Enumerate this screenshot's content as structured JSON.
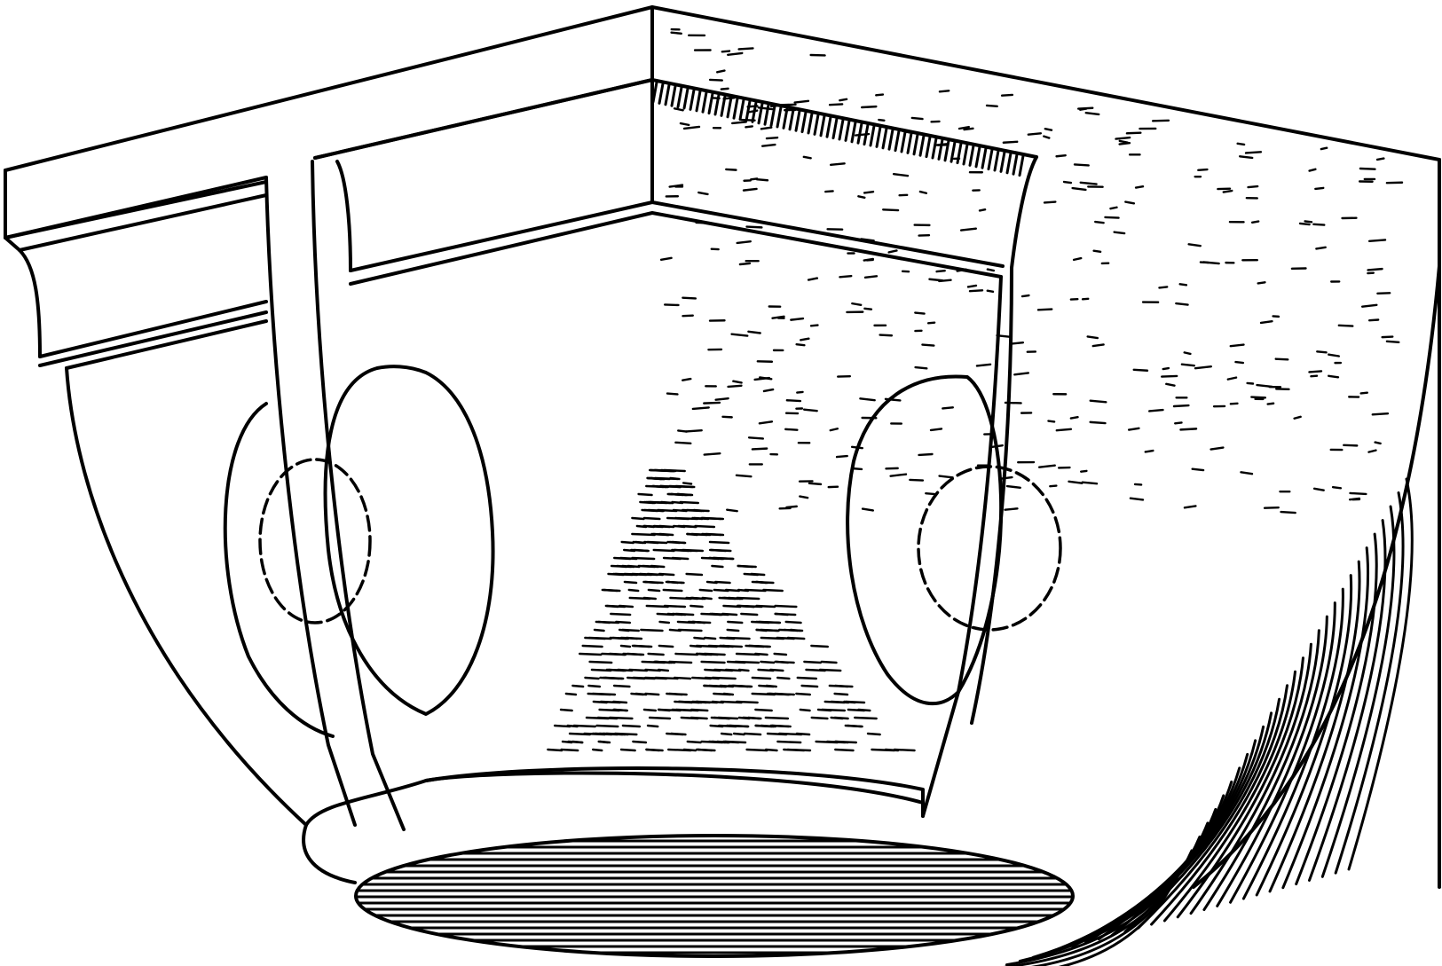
{
  "illustration": {
    "subject": "",
    "style": "black line engraving",
    "ink_color": "#000000",
    "paper_color": "#ffffff"
  }
}
